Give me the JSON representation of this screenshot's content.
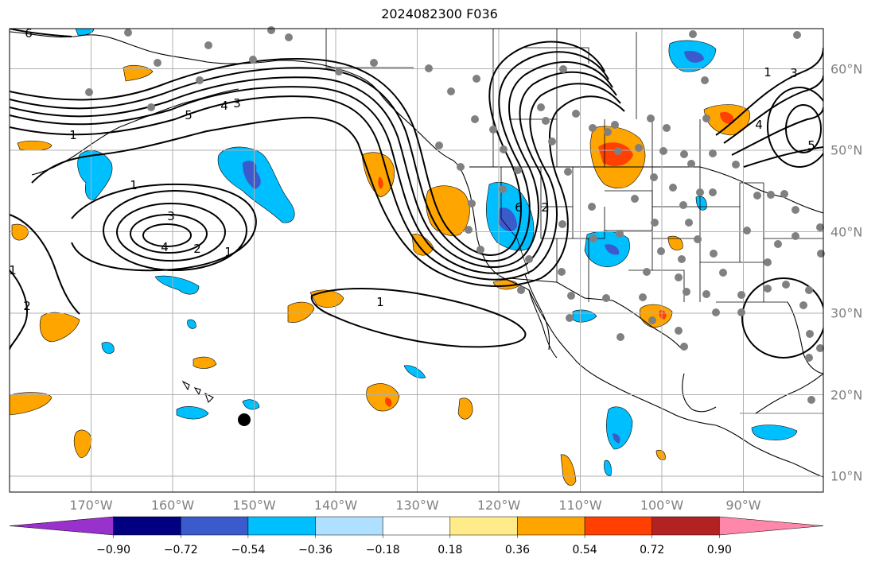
{
  "title": "2024082300 F036",
  "map": {
    "projection": "plate-carree",
    "lon_range": [
      -180,
      -80
    ],
    "lat_range": [
      8,
      65
    ],
    "grid": true,
    "coastlines": true,
    "country_borders": true,
    "us_state_borders": true,
    "lon_ticks": [
      -170,
      -160,
      -150,
      -140,
      -130,
      -120,
      -110,
      -100,
      -90
    ],
    "lon_labels": [
      "170°W",
      "160°W",
      "150°W",
      "140°W",
      "130°W",
      "120°W",
      "110°W",
      "100°W",
      "90°W"
    ],
    "lat_ticks": [
      10,
      20,
      30,
      40,
      50,
      60
    ],
    "lat_labels": [
      "10°N",
      "20°N",
      "30°N",
      "40°N",
      "50°N",
      "60°N"
    ],
    "label_color": "#808080",
    "station_marker_color": "#808080",
    "highlight_marker_color": "#000000",
    "contour_levels": [
      1,
      2,
      3,
      4,
      5,
      6
    ],
    "contour_color": "#000000",
    "visible_contour_labels": [
      "6",
      "5",
      "4",
      "3",
      "1",
      "3",
      "4",
      "2",
      "1",
      "1",
      "6",
      "2",
      "1",
      "1",
      "3",
      "5",
      "4",
      "1",
      "2"
    ]
  },
  "colorbar": {
    "orientation": "horizontal",
    "extend": "both",
    "tick_labels": [
      "−0.90",
      "−0.72",
      "−0.54",
      "−0.36",
      "−0.18",
      "0.18",
      "0.36",
      "0.54",
      "0.72",
      "0.90"
    ],
    "under_color": "#9932cc",
    "over_color": "#ff88aa",
    "colors": [
      "#000080",
      "#3b5bcc",
      "#00bfff",
      "#b0e0ff",
      "#ffffff",
      "#ffeb8a",
      "#ffa500",
      "#ff4000",
      "#b22222"
    ]
  }
}
